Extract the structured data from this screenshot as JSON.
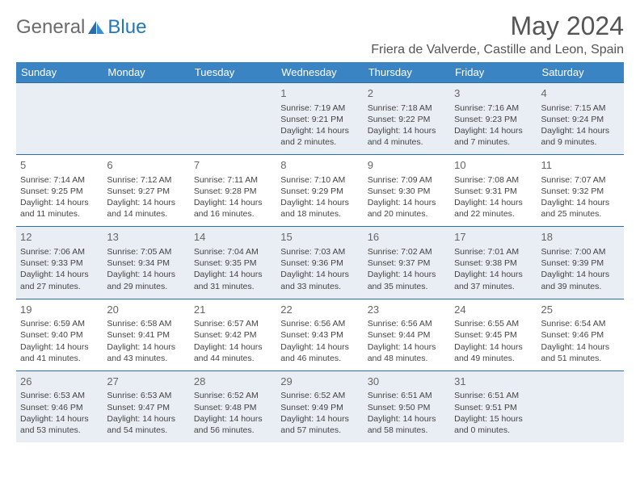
{
  "logo": {
    "part1": "General",
    "part2": "Blue"
  },
  "title": "May 2024",
  "location": "Friera de Valverde, Castille and Leon, Spain",
  "header_bg": "#3b84c4",
  "alt_bg": "#e9eef4",
  "row_border": "#2a6da8",
  "weekdays": [
    "Sunday",
    "Monday",
    "Tuesday",
    "Wednesday",
    "Thursday",
    "Friday",
    "Saturday"
  ],
  "weeks": [
    [
      null,
      null,
      null,
      {
        "n": "1",
        "sr": "7:19 AM",
        "ss": "9:21 PM",
        "d1": "14 hours",
        "d2": "and 2 minutes."
      },
      {
        "n": "2",
        "sr": "7:18 AM",
        "ss": "9:22 PM",
        "d1": "14 hours",
        "d2": "and 4 minutes."
      },
      {
        "n": "3",
        "sr": "7:16 AM",
        "ss": "9:23 PM",
        "d1": "14 hours",
        "d2": "and 7 minutes."
      },
      {
        "n": "4",
        "sr": "7:15 AM",
        "ss": "9:24 PM",
        "d1": "14 hours",
        "d2": "and 9 minutes."
      }
    ],
    [
      {
        "n": "5",
        "sr": "7:14 AM",
        "ss": "9:25 PM",
        "d1": "14 hours",
        "d2": "and 11 minutes."
      },
      {
        "n": "6",
        "sr": "7:12 AM",
        "ss": "9:27 PM",
        "d1": "14 hours",
        "d2": "and 14 minutes."
      },
      {
        "n": "7",
        "sr": "7:11 AM",
        "ss": "9:28 PM",
        "d1": "14 hours",
        "d2": "and 16 minutes."
      },
      {
        "n": "8",
        "sr": "7:10 AM",
        "ss": "9:29 PM",
        "d1": "14 hours",
        "d2": "and 18 minutes."
      },
      {
        "n": "9",
        "sr": "7:09 AM",
        "ss": "9:30 PM",
        "d1": "14 hours",
        "d2": "and 20 minutes."
      },
      {
        "n": "10",
        "sr": "7:08 AM",
        "ss": "9:31 PM",
        "d1": "14 hours",
        "d2": "and 22 minutes."
      },
      {
        "n": "11",
        "sr": "7:07 AM",
        "ss": "9:32 PM",
        "d1": "14 hours",
        "d2": "and 25 minutes."
      }
    ],
    [
      {
        "n": "12",
        "sr": "7:06 AM",
        "ss": "9:33 PM",
        "d1": "14 hours",
        "d2": "and 27 minutes."
      },
      {
        "n": "13",
        "sr": "7:05 AM",
        "ss": "9:34 PM",
        "d1": "14 hours",
        "d2": "and 29 minutes."
      },
      {
        "n": "14",
        "sr": "7:04 AM",
        "ss": "9:35 PM",
        "d1": "14 hours",
        "d2": "and 31 minutes."
      },
      {
        "n": "15",
        "sr": "7:03 AM",
        "ss": "9:36 PM",
        "d1": "14 hours",
        "d2": "and 33 minutes."
      },
      {
        "n": "16",
        "sr": "7:02 AM",
        "ss": "9:37 PM",
        "d1": "14 hours",
        "d2": "and 35 minutes."
      },
      {
        "n": "17",
        "sr": "7:01 AM",
        "ss": "9:38 PM",
        "d1": "14 hours",
        "d2": "and 37 minutes."
      },
      {
        "n": "18",
        "sr": "7:00 AM",
        "ss": "9:39 PM",
        "d1": "14 hours",
        "d2": "and 39 minutes."
      }
    ],
    [
      {
        "n": "19",
        "sr": "6:59 AM",
        "ss": "9:40 PM",
        "d1": "14 hours",
        "d2": "and 41 minutes."
      },
      {
        "n": "20",
        "sr": "6:58 AM",
        "ss": "9:41 PM",
        "d1": "14 hours",
        "d2": "and 43 minutes."
      },
      {
        "n": "21",
        "sr": "6:57 AM",
        "ss": "9:42 PM",
        "d1": "14 hours",
        "d2": "and 44 minutes."
      },
      {
        "n": "22",
        "sr": "6:56 AM",
        "ss": "9:43 PM",
        "d1": "14 hours",
        "d2": "and 46 minutes."
      },
      {
        "n": "23",
        "sr": "6:56 AM",
        "ss": "9:44 PM",
        "d1": "14 hours",
        "d2": "and 48 minutes."
      },
      {
        "n": "24",
        "sr": "6:55 AM",
        "ss": "9:45 PM",
        "d1": "14 hours",
        "d2": "and 49 minutes."
      },
      {
        "n": "25",
        "sr": "6:54 AM",
        "ss": "9:46 PM",
        "d1": "14 hours",
        "d2": "and 51 minutes."
      }
    ],
    [
      {
        "n": "26",
        "sr": "6:53 AM",
        "ss": "9:46 PM",
        "d1": "14 hours",
        "d2": "and 53 minutes."
      },
      {
        "n": "27",
        "sr": "6:53 AM",
        "ss": "9:47 PM",
        "d1": "14 hours",
        "d2": "and 54 minutes."
      },
      {
        "n": "28",
        "sr": "6:52 AM",
        "ss": "9:48 PM",
        "d1": "14 hours",
        "d2": "and 56 minutes."
      },
      {
        "n": "29",
        "sr": "6:52 AM",
        "ss": "9:49 PM",
        "d1": "14 hours",
        "d2": "and 57 minutes."
      },
      {
        "n": "30",
        "sr": "6:51 AM",
        "ss": "9:50 PM",
        "d1": "14 hours",
        "d2": "and 58 minutes."
      },
      {
        "n": "31",
        "sr": "6:51 AM",
        "ss": "9:51 PM",
        "d1": "15 hours",
        "d2": "and 0 minutes."
      },
      null
    ]
  ]
}
